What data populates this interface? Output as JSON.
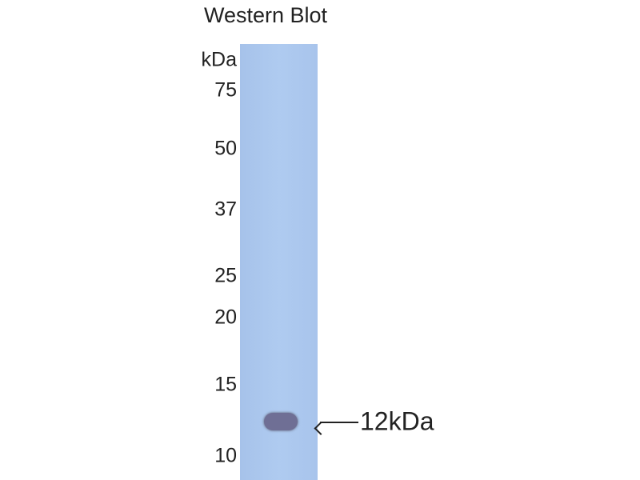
{
  "title": "Western Blot",
  "unit_label": "kDa",
  "markers": [
    "75",
    "50",
    "37",
    "25",
    "20",
    "15",
    "10"
  ],
  "annotation": "12kDa",
  "colors": {
    "lane": "#aac6ee",
    "band": "#6f6f95"
  }
}
